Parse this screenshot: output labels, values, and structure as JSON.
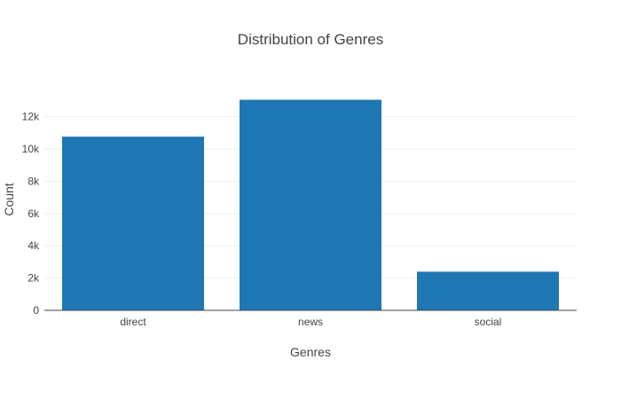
{
  "chart_data": {
    "type": "bar",
    "title": "Distribution of Genres",
    "xlabel": "Genres",
    "ylabel": "Count",
    "categories": [
      "direct",
      "news",
      "social"
    ],
    "values": [
      10766,
      13054,
      2396
    ],
    "ylim": [
      0,
      13741
    ],
    "yticks": [
      0,
      2000,
      4000,
      6000,
      8000,
      10000,
      12000
    ],
    "ytick_labels": [
      "0",
      "2k",
      "4k",
      "6k",
      "8k",
      "10k",
      "12k"
    ],
    "grid": true,
    "legend": "none",
    "bar_color": "#1f77b4"
  }
}
